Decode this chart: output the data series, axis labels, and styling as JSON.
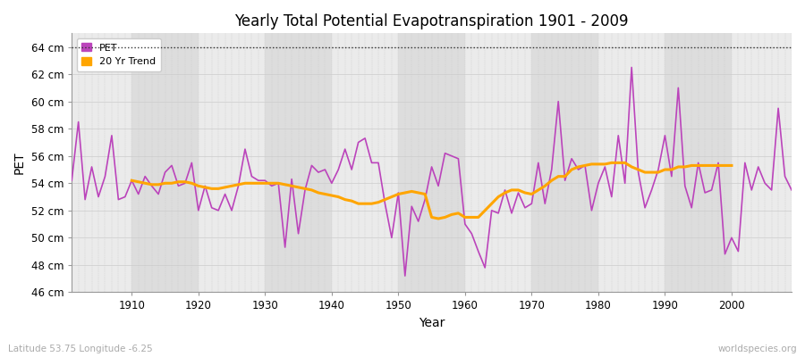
{
  "title": "Yearly Total Potential Evapotranspiration 1901 - 2009",
  "xlabel": "Year",
  "ylabel": "PET",
  "subtitle": "Latitude 53.75 Longitude -6.25",
  "watermark": "worldspecies.org",
  "ylim": [
    46,
    65
  ],
  "ytick_labels": [
    "46 cm",
    "48 cm",
    "50 cm",
    "52 cm",
    "54 cm",
    "56 cm",
    "58 cm",
    "60 cm",
    "62 cm",
    "64 cm"
  ],
  "ytick_values": [
    46,
    48,
    50,
    52,
    54,
    56,
    58,
    60,
    62,
    64
  ],
  "pet_color": "#bb44bb",
  "trend_color": "#ffa500",
  "fig_bg_color": "#ffffff",
  "plot_bg_color": "#e8e8e8",
  "band_color_dark": "#dddddd",
  "band_color_light": "#ebebeb",
  "years": [
    1901,
    1902,
    1903,
    1904,
    1905,
    1906,
    1907,
    1908,
    1909,
    1910,
    1911,
    1912,
    1913,
    1914,
    1915,
    1916,
    1917,
    1918,
    1919,
    1920,
    1921,
    1922,
    1923,
    1924,
    1925,
    1926,
    1927,
    1928,
    1929,
    1930,
    1931,
    1932,
    1933,
    1934,
    1935,
    1936,
    1937,
    1938,
    1939,
    1940,
    1941,
    1942,
    1943,
    1944,
    1945,
    1946,
    1947,
    1948,
    1949,
    1950,
    1951,
    1952,
    1953,
    1954,
    1955,
    1956,
    1957,
    1958,
    1959,
    1960,
    1961,
    1962,
    1963,
    1964,
    1965,
    1966,
    1967,
    1968,
    1969,
    1970,
    1971,
    1972,
    1973,
    1974,
    1975,
    1976,
    1977,
    1978,
    1979,
    1980,
    1981,
    1982,
    1983,
    1984,
    1985,
    1986,
    1987,
    1988,
    1989,
    1990,
    1991,
    1992,
    1993,
    1994,
    1995,
    1996,
    1997,
    1998,
    1999,
    2000,
    2001,
    2002,
    2003,
    2004,
    2005,
    2006,
    2007,
    2008,
    2009
  ],
  "pet_values": [
    54.2,
    58.5,
    52.8,
    55.2,
    53.0,
    54.5,
    57.5,
    52.8,
    53.0,
    54.2,
    53.2,
    54.5,
    53.8,
    53.2,
    54.8,
    55.3,
    53.8,
    54.0,
    55.5,
    52.0,
    53.8,
    52.2,
    52.0,
    53.2,
    52.0,
    53.8,
    56.5,
    54.5,
    54.2,
    54.2,
    53.8,
    54.0,
    49.3,
    54.3,
    50.3,
    53.5,
    55.3,
    54.8,
    55.0,
    54.0,
    55.0,
    56.5,
    55.0,
    57.0,
    57.3,
    55.5,
    55.5,
    52.5,
    50.0,
    53.3,
    47.2,
    52.3,
    51.2,
    52.8,
    55.2,
    53.8,
    56.2,
    56.0,
    55.8,
    51.0,
    50.3,
    49.0,
    47.8,
    52.0,
    51.8,
    53.5,
    51.8,
    53.3,
    52.2,
    52.5,
    55.5,
    52.5,
    55.0,
    60.0,
    54.2,
    55.8,
    55.0,
    55.3,
    52.0,
    54.0,
    55.2,
    53.0,
    57.5,
    54.0,
    62.5,
    54.8,
    52.2,
    53.5,
    55.0,
    57.5,
    54.5,
    61.0,
    53.8,
    52.2,
    55.5,
    53.3,
    53.5,
    55.5,
    48.8,
    50.0,
    49.0,
    55.5,
    53.5,
    55.2,
    54.0,
    53.5,
    59.5,
    54.5,
    53.5
  ],
  "trend_years": [
    1910,
    1911,
    1912,
    1913,
    1914,
    1915,
    1916,
    1917,
    1918,
    1919,
    1920,
    1921,
    1922,
    1923,
    1924,
    1925,
    1926,
    1927,
    1928,
    1929,
    1930,
    1931,
    1932,
    1933,
    1934,
    1935,
    1936,
    1937,
    1938,
    1939,
    1940,
    1941,
    1942,
    1943,
    1944,
    1945,
    1946,
    1947,
    1948,
    1949,
    1950,
    1951,
    1952,
    1953,
    1954,
    1955,
    1956,
    1957,
    1958,
    1959,
    1960,
    1961,
    1962,
    1963,
    1964,
    1965,
    1966,
    1967,
    1968,
    1969,
    1970,
    1971,
    1972,
    1973,
    1974,
    1975,
    1976,
    1977,
    1978,
    1979,
    1980,
    1981,
    1982,
    1983,
    1984,
    1985,
    1986,
    1987,
    1988,
    1989,
    1990,
    1991,
    1992,
    1993,
    1994,
    1995,
    1996,
    1997,
    1998,
    1999,
    2000
  ],
  "trend_values": [
    54.2,
    54.1,
    54.0,
    53.9,
    53.9,
    54.0,
    54.0,
    54.1,
    54.1,
    54.0,
    53.8,
    53.7,
    53.6,
    53.6,
    53.7,
    53.8,
    53.9,
    54.0,
    54.0,
    54.0,
    54.0,
    54.0,
    54.0,
    53.9,
    53.8,
    53.7,
    53.6,
    53.5,
    53.3,
    53.2,
    53.1,
    53.0,
    52.8,
    52.7,
    52.5,
    52.5,
    52.5,
    52.6,
    52.8,
    53.0,
    53.2,
    53.3,
    53.4,
    53.3,
    53.2,
    51.5,
    51.4,
    51.5,
    51.7,
    51.8,
    51.5,
    51.5,
    51.5,
    52.0,
    52.5,
    53.0,
    53.3,
    53.5,
    53.5,
    53.3,
    53.2,
    53.5,
    53.8,
    54.2,
    54.5,
    54.5,
    55.0,
    55.2,
    55.3,
    55.4,
    55.4,
    55.4,
    55.5,
    55.5,
    55.5,
    55.2,
    55.0,
    54.8,
    54.8,
    54.8,
    55.0,
    55.0,
    55.2,
    55.2,
    55.3,
    55.3,
    55.3,
    55.3,
    55.3,
    55.3,
    55.3
  ]
}
